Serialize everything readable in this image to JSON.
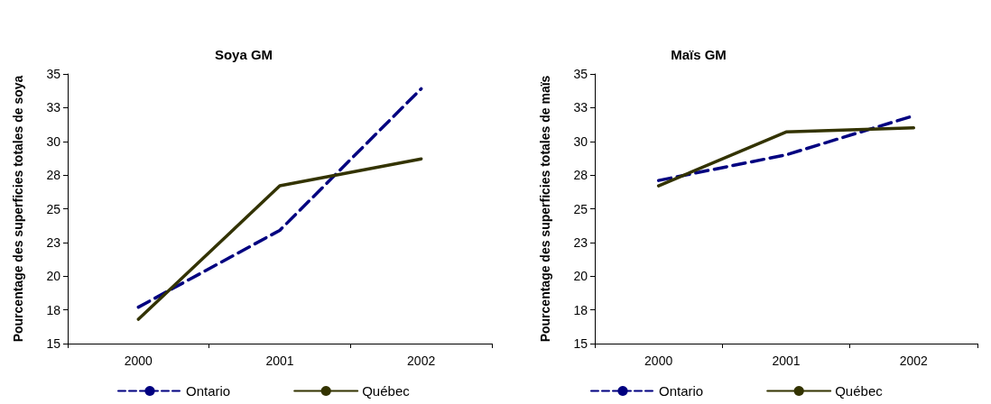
{
  "chart_data": [
    {
      "type": "line",
      "title": "Soya GM",
      "ylabel": "Pourcentage des superficies totales de soya",
      "categories": [
        "2000",
        "2001",
        "2002"
      ],
      "series": [
        {
          "name": "Ontario",
          "color": "#000080",
          "line_style": "dashed",
          "values": [
            17.7,
            23.4,
            33.9
          ]
        },
        {
          "name": "Québec",
          "color": "#333300",
          "line_style": "solid",
          "values": [
            16.8,
            26.7,
            28.7
          ]
        }
      ],
      "ylim": [
        15,
        35
      ],
      "yticks": [
        15,
        {
          "value": 17.5,
          "label": "18"
        },
        20,
        {
          "value": 22.5,
          "label": "23"
        },
        25,
        {
          "value": 27.5,
          "label": "28"
        },
        30,
        {
          "value": 32.5,
          "label": "33"
        },
        35
      ],
      "grid": false,
      "legend": "bottom",
      "marker": "none"
    },
    {
      "type": "line",
      "title": "Maïs GM",
      "ylabel": "Pourcentage des superficies totales de maïs",
      "categories": [
        "2000",
        "2001",
        "2002"
      ],
      "series": [
        {
          "name": "Ontario",
          "color": "#000080",
          "line_style": "dashed",
          "values": [
            27.1,
            29.0,
            31.9
          ]
        },
        {
          "name": "Québec",
          "color": "#333300",
          "line_style": "solid",
          "values": [
            26.7,
            30.7,
            31.0
          ]
        }
      ],
      "ylim": [
        15,
        35
      ],
      "yticks": [
        15,
        {
          "value": 17.5,
          "label": "18"
        },
        20,
        {
          "value": 22.5,
          "label": "23"
        },
        25,
        {
          "value": 27.5,
          "label": "28"
        },
        30,
        {
          "value": 32.5,
          "label": "33"
        },
        35
      ],
      "grid": false,
      "legend": "bottom",
      "marker": "none"
    }
  ]
}
